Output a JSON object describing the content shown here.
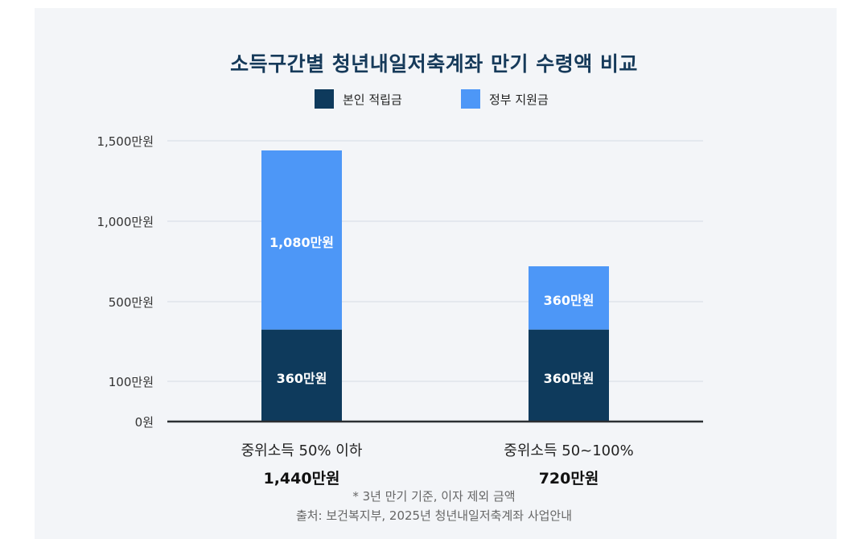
{
  "chart_data": {
    "type": "bar",
    "stacked": true,
    "title": "소득구간별 청년내일저축계좌 만기 수령액 비교",
    "categories": [
      "중위소득 50% 이하",
      "중위소득 50~100%"
    ],
    "category_totals": [
      "1,440만원",
      "720만원"
    ],
    "series": [
      {
        "name": "본인 적립금",
        "color": "#0e3a5c",
        "values": [
          360,
          360
        ],
        "labels": [
          "360만원",
          "360만원"
        ]
      },
      {
        "name": "정부 지원금",
        "color": "#4d97f7",
        "values": [
          1080,
          360
        ],
        "labels": [
          "1,080만원",
          "360만원"
        ]
      }
    ],
    "y_ticks": [
      {
        "value": 0,
        "label": "0원"
      },
      {
        "value": 100,
        "label": "100만원"
      },
      {
        "value": 500,
        "label": "500만원"
      },
      {
        "value": 1000,
        "label": "1,000만원"
      },
      {
        "value": 1500,
        "label": "1,500만원"
      }
    ],
    "ylim": [
      0,
      1500
    ],
    "grid": true,
    "legend_position": "top"
  },
  "notes": {
    "footnote": "* 3년 만기 기준, 이자 제외 금액",
    "source": "출처: 보건복지부, 2025년 청년내일저축계좌 사업안내"
  }
}
